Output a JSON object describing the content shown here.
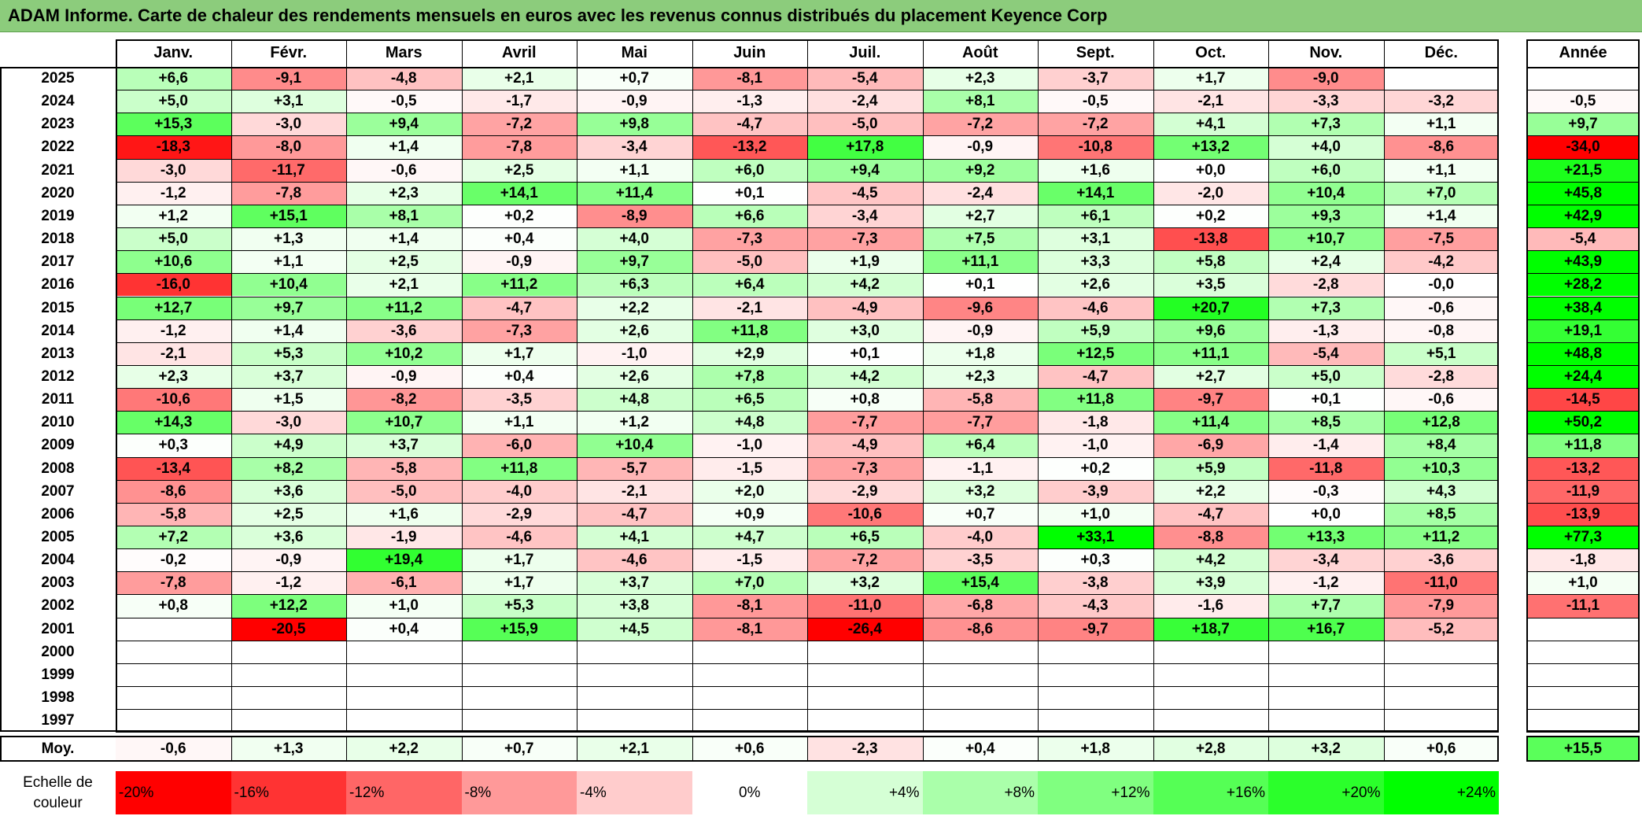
{
  "title": "ADAM Informe. Carte de chaleur des rendements mensuels en euros avec les revenus connus distribués du placement Keyence Corp",
  "chart_data": {
    "type": "heatmap",
    "title": "ADAM Informe. Carte de chaleur des rendements mensuels en euros avec les revenus connus distribués du placement Keyence Corp",
    "columns": [
      "Janv.",
      "Févr.",
      "Mars",
      "Avril",
      "Mai",
      "Juin",
      "Juil.",
      "Août",
      "Sept.",
      "Oct.",
      "Nov.",
      "Déc."
    ],
    "year_header": "Année",
    "rows": [
      {
        "year": "2025",
        "values": [
          6.6,
          -9.1,
          -4.8,
          2.1,
          0.7,
          -8.1,
          -5.4,
          2.3,
          -3.7,
          1.7,
          -9.0,
          null
        ],
        "annual": null
      },
      {
        "year": "2024",
        "values": [
          5.0,
          3.1,
          -0.5,
          -1.7,
          -0.9,
          -1.3,
          -2.4,
          8.1,
          -0.5,
          -2.1,
          -3.3,
          -3.2
        ],
        "annual": -0.5
      },
      {
        "year": "2023",
        "values": [
          15.3,
          -3.0,
          9.4,
          -7.2,
          9.8,
          -4.7,
          -5.0,
          -7.2,
          -7.2,
          4.1,
          7.3,
          1.1
        ],
        "annual": 9.7
      },
      {
        "year": "2022",
        "values": [
          -18.3,
          -8.0,
          1.4,
          -7.8,
          -3.4,
          -13.2,
          17.8,
          -0.9,
          -10.8,
          13.2,
          4.0,
          -8.6
        ],
        "annual": -34.0
      },
      {
        "year": "2021",
        "values": [
          -3.0,
          -11.7,
          -0.6,
          2.5,
          1.1,
          6.0,
          9.4,
          9.2,
          1.6,
          0.0,
          6.0,
          1.1
        ],
        "annual": 21.5
      },
      {
        "year": "2020",
        "values": [
          -1.2,
          -7.8,
          2.3,
          14.1,
          11.4,
          0.1,
          -4.5,
          -2.4,
          14.1,
          -2.0,
          10.4,
          7.0
        ],
        "annual": 45.8
      },
      {
        "year": "2019",
        "values": [
          1.2,
          15.1,
          8.1,
          0.2,
          -8.9,
          6.6,
          -3.4,
          2.7,
          6.1,
          0.2,
          9.3,
          1.4
        ],
        "annual": 42.9
      },
      {
        "year": "2018",
        "values": [
          5.0,
          1.3,
          1.4,
          0.4,
          4.0,
          -7.3,
          -7.3,
          7.5,
          3.1,
          -13.8,
          10.7,
          -7.5
        ],
        "annual": -5.4
      },
      {
        "year": "2017",
        "values": [
          10.6,
          1.1,
          2.5,
          -0.9,
          9.7,
          -5.0,
          1.9,
          11.1,
          3.3,
          5.8,
          2.4,
          -4.2
        ],
        "annual": 43.9
      },
      {
        "year": "2016",
        "values": [
          -16.0,
          10.4,
          2.1,
          11.2,
          6.3,
          6.4,
          4.2,
          0.1,
          2.6,
          3.5,
          -2.8,
          -0.0
        ],
        "annual": 28.2
      },
      {
        "year": "2015",
        "values": [
          12.7,
          9.7,
          11.2,
          -4.7,
          2.2,
          -2.1,
          -4.9,
          -9.6,
          -4.6,
          20.7,
          7.3,
          -0.6
        ],
        "annual": 38.4
      },
      {
        "year": "2014",
        "values": [
          -1.2,
          1.4,
          -3.6,
          -7.3,
          2.6,
          11.8,
          3.0,
          -0.9,
          5.9,
          9.6,
          -1.3,
          -0.8
        ],
        "annual": 19.1
      },
      {
        "year": "2013",
        "values": [
          -2.1,
          5.3,
          10.2,
          1.7,
          -1.0,
          2.9,
          0.1,
          1.8,
          12.5,
          11.1,
          -5.4,
          5.1
        ],
        "annual": 48.8
      },
      {
        "year": "2012",
        "values": [
          2.3,
          3.7,
          -0.9,
          0.4,
          2.6,
          7.8,
          4.2,
          2.3,
          -4.7,
          2.7,
          5.0,
          -2.8
        ],
        "annual": 24.4
      },
      {
        "year": "2011",
        "values": [
          -10.6,
          1.5,
          -8.2,
          -3.5,
          4.8,
          6.5,
          0.8,
          -5.8,
          11.8,
          -9.7,
          0.1,
          -0.6
        ],
        "annual": -14.5
      },
      {
        "year": "2010",
        "values": [
          14.3,
          -3.0,
          10.7,
          1.1,
          1.2,
          4.8,
          -7.7,
          -7.7,
          -1.8,
          11.4,
          8.5,
          12.8
        ],
        "annual": 50.2
      },
      {
        "year": "2009",
        "values": [
          0.3,
          4.9,
          3.7,
          -6.0,
          10.4,
          -1.0,
          -4.9,
          6.4,
          -1.0,
          -6.9,
          -1.4,
          8.4
        ],
        "annual": 11.8
      },
      {
        "year": "2008",
        "values": [
          -13.4,
          8.2,
          -5.8,
          11.8,
          -5.7,
          -1.5,
          -7.3,
          -1.1,
          0.2,
          5.9,
          -11.8,
          10.3
        ],
        "annual": -13.2
      },
      {
        "year": "2007",
        "values": [
          -8.6,
          3.6,
          -5.0,
          -4.0,
          -2.1,
          2.0,
          -2.9,
          3.2,
          -3.9,
          2.2,
          -0.3,
          4.3
        ],
        "annual": -11.9
      },
      {
        "year": "2006",
        "values": [
          -5.8,
          2.5,
          1.6,
          -2.9,
          -4.7,
          0.9,
          -10.6,
          0.7,
          1.0,
          -4.7,
          0.0,
          8.5
        ],
        "annual": -13.9
      },
      {
        "year": "2005",
        "values": [
          7.2,
          3.6,
          -1.9,
          -4.6,
          4.1,
          4.7,
          6.5,
          -4.0,
          33.1,
          -8.8,
          13.3,
          11.2
        ],
        "annual": 77.3
      },
      {
        "year": "2004",
        "values": [
          -0.2,
          -0.9,
          19.4,
          1.7,
          -4.6,
          -1.5,
          -7.2,
          -3.5,
          0.3,
          4.2,
          -3.4,
          -3.6
        ],
        "annual": -1.8
      },
      {
        "year": "2003",
        "values": [
          -7.8,
          -1.2,
          -6.1,
          1.7,
          3.7,
          7.0,
          3.2,
          15.4,
          -3.8,
          3.9,
          -1.2,
          -11.0
        ],
        "annual": 1.0
      },
      {
        "year": "2002",
        "values": [
          0.8,
          12.2,
          1.0,
          5.3,
          3.8,
          -8.1,
          -11.0,
          -6.8,
          -4.3,
          -1.6,
          7.7,
          -7.9
        ],
        "annual": -11.1
      },
      {
        "year": "2001",
        "values": [
          null,
          -20.5,
          0.4,
          15.9,
          4.5,
          -8.1,
          -26.4,
          -8.6,
          -9.7,
          18.7,
          16.7,
          -5.2
        ],
        "annual": null
      },
      {
        "year": "2000",
        "values": [
          null,
          null,
          null,
          null,
          null,
          null,
          null,
          null,
          null,
          null,
          null,
          null
        ],
        "annual": null
      },
      {
        "year": "1999",
        "values": [
          null,
          null,
          null,
          null,
          null,
          null,
          null,
          null,
          null,
          null,
          null,
          null
        ],
        "annual": null
      },
      {
        "year": "1998",
        "values": [
          null,
          null,
          null,
          null,
          null,
          null,
          null,
          null,
          null,
          null,
          null,
          null
        ],
        "annual": null
      },
      {
        "year": "1997",
        "values": [
          null,
          null,
          null,
          null,
          null,
          null,
          null,
          null,
          null,
          null,
          null,
          null
        ],
        "annual": null
      }
    ],
    "average": {
      "label": "Moy.",
      "values": [
        -0.6,
        1.3,
        2.2,
        0.7,
        2.1,
        0.6,
        -2.3,
        0.4,
        1.8,
        2.8,
        3.2,
        0.6
      ],
      "annual": 15.5
    },
    "color_scale": {
      "label": "Echelle de couleur",
      "steps": [
        -20,
        -16,
        -12,
        -8,
        -4,
        0,
        4,
        8,
        12,
        16,
        20,
        24
      ],
      "labels": [
        "-20%",
        "-16%",
        "-12%",
        "-8%",
        "-4%",
        "0%",
        "+4%",
        "+8%",
        "+12%",
        "+16%",
        "+20%",
        "+24%"
      ],
      "negative_color": "#ff0000",
      "positive_color": "#00ff00",
      "neutral_color": "#ffffff"
    }
  }
}
